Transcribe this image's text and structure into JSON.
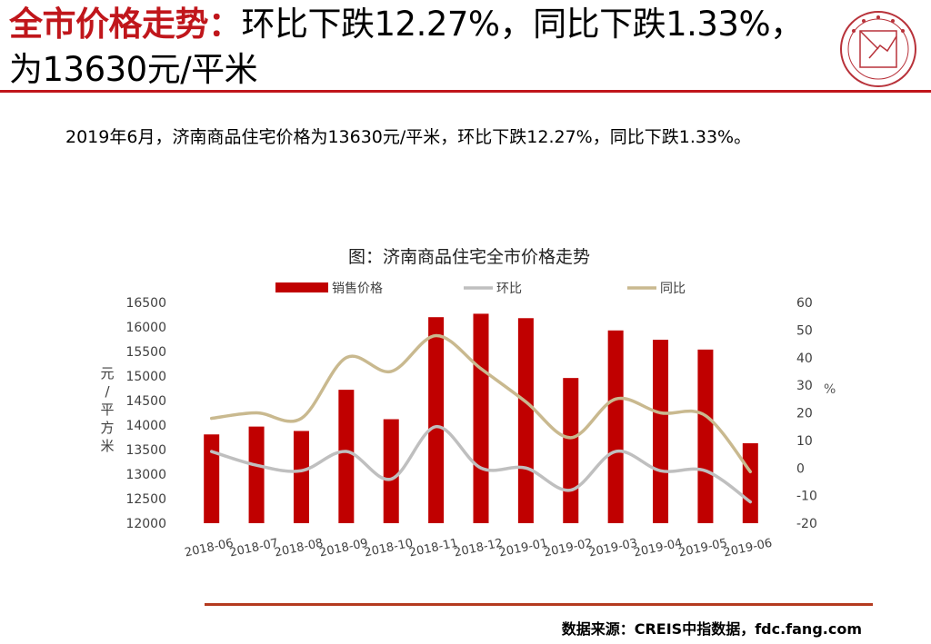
{
  "header": {
    "title_highlight": "全市价格走势：",
    "title_rest": "环比下跌12.27%，同比下跌1.33%，为13630元/平米",
    "logo_icon": "china-index-academy-seal"
  },
  "summary": "2019年6月，济南商品住宅价格为13630元/平米，环比下跌12.27%，同比下跌1.33%。",
  "footer": {
    "source": "数据来源：CREIS中指数据，fdc.fang.com"
  },
  "colors": {
    "accent": "#c0161b",
    "bar": "#c00000",
    "mom_line": "#bfbfbf",
    "yoy_line": "#c9b98f"
  },
  "chart_data": {
    "type": "bar",
    "title": "图：济南商品住宅全市价格走势",
    "categories": [
      "2018-06",
      "2018-07",
      "2018-08",
      "2018-09",
      "2018-10",
      "2018-11",
      "2018-12",
      "2019-01",
      "2019-02",
      "2019-03",
      "2019-04",
      "2019-05",
      "2019-06"
    ],
    "series": [
      {
        "name": "销售价格",
        "type": "bar",
        "axis": "left",
        "values": [
          13810,
          13970,
          13880,
          14720,
          14120,
          16200,
          16270,
          16180,
          14960,
          15930,
          15740,
          15540,
          13630
        ]
      },
      {
        "name": "环比",
        "type": "line",
        "axis": "right",
        "values": [
          6,
          1,
          -1,
          6,
          -4,
          15,
          0,
          0,
          -8,
          6,
          -1,
          -1,
          -12.27
        ]
      },
      {
        "name": "同比",
        "type": "line",
        "axis": "right",
        "values": [
          18,
          20,
          18,
          40,
          35,
          48,
          36,
          24,
          11,
          25,
          20,
          19,
          -1.33
        ]
      }
    ],
    "ylabel": "元/平方米",
    "ylim": [
      12000,
      16500
    ],
    "yticks": [
      12000,
      12500,
      13000,
      13500,
      14000,
      14500,
      15000,
      15500,
      16000,
      16500
    ],
    "y2label": "%",
    "y2lim": [
      -20,
      60
    ],
    "y2ticks": [
      -20,
      -10,
      0,
      10,
      20,
      30,
      40,
      50,
      60
    ],
    "legend_position": "top",
    "grid": false
  }
}
